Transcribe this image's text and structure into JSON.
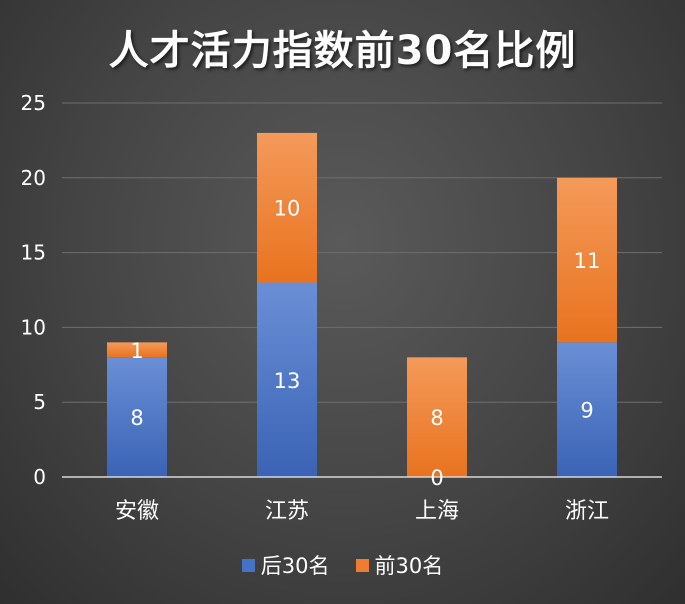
{
  "chart_data": {
    "type": "bar",
    "stacked": true,
    "title": "人才活力指数前30名比例",
    "categories": [
      "安徽",
      "江苏",
      "上海",
      "浙江"
    ],
    "series": [
      {
        "name": "后30名",
        "values": [
          8,
          13,
          0,
          9
        ],
        "color": "#4472c4"
      },
      {
        "name": "前30名",
        "values": [
          1,
          10,
          8,
          11
        ],
        "color": "#ed7d31"
      }
    ],
    "ylim": [
      0,
      25
    ],
    "yticks": [
      0,
      5,
      10,
      15,
      20,
      25
    ],
    "grid": true,
    "legend": "bottom"
  }
}
